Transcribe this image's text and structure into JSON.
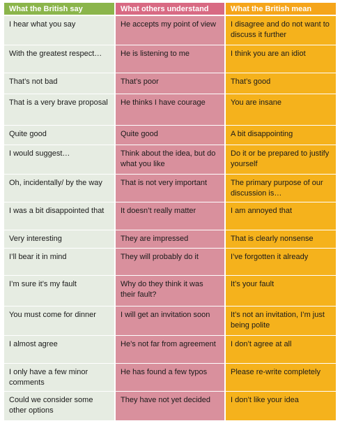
{
  "headers": [
    "What the British say",
    "What others understand",
    "What the British mean"
  ],
  "rows": [
    [
      "I hear what you say",
      "He accepts my point of view",
      "I disagree and do not want to discuss it further"
    ],
    [
      "With the greatest respect…",
      "He is listening to me",
      "I think you are an idiot"
    ],
    [
      "That’s not bad",
      "That’s poor",
      "That’s good"
    ],
    [
      "That is a very brave proposal",
      "He thinks I have courage",
      "You are insane"
    ],
    [
      "Quite good",
      "Quite good",
      "A bit disappointing"
    ],
    [
      "I would suggest…",
      "Think about the idea, but do what you like",
      "Do it or be prepared to justify yourself"
    ],
    [
      "Oh, incidentally/ by the way",
      "That is not very important",
      "The primary purpose of our discussion is…"
    ],
    [
      "I was a bit disappointed that",
      "It doesn’t really matter",
      "I am annoyed that"
    ],
    [
      "Very interesting",
      "They are impressed",
      "That is clearly nonsense"
    ],
    [
      "I’ll bear it in mind",
      "They will probably do it",
      "I’ve forgotten it already"
    ],
    [
      "I’m sure it’s my fault",
      "Why do they think it was their fault?",
      "It’s your fault"
    ],
    [
      "You must come for dinner",
      "I will get an invitation soon",
      "It’s not an invitation, I’m just being polite"
    ],
    [
      "I almost agree",
      "He’s not far from agreement",
      "I don’t agree at all"
    ],
    [
      "I only have a few minor comments",
      "He has found a few typos",
      "Please re-write completely"
    ],
    [
      "Could we consider some other options",
      "They have not yet decided",
      "I don’t like your idea"
    ]
  ],
  "colors": {
    "header": [
      "#8bb54b",
      "#d86a83",
      "#f5a51a"
    ],
    "body": [
      "#e6ece2",
      "#d9909d",
      "#f5b21c"
    ]
  }
}
